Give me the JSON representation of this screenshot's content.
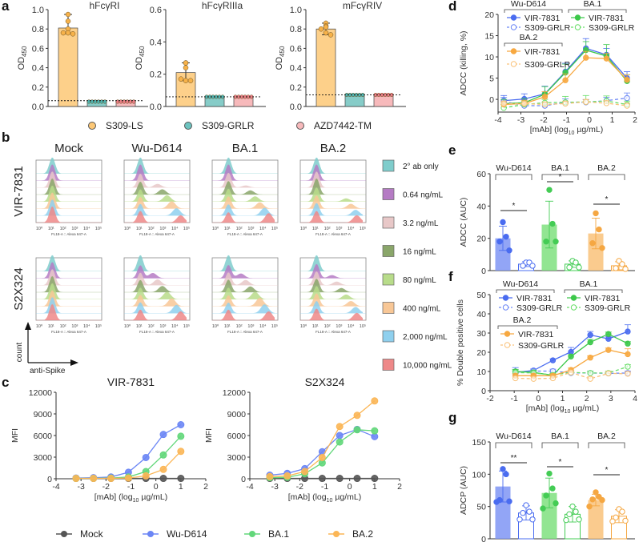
{
  "panel_labels": [
    "a",
    "b",
    "c",
    "d",
    "e",
    "f",
    "g"
  ],
  "colors": {
    "orange": "#f7b24a",
    "orange_fill": "#fdd08a",
    "teal": "#4fb3b0",
    "teal_fill": "#86ccc8",
    "pink": "#e87d84",
    "pink_fill": "#f7b9bb",
    "blue": "#4a6cf0",
    "blue_fill": "#7f95f5",
    "green": "#44cc55",
    "green_fill": "#7fe07f",
    "gold": "#f5a742",
    "gold_fill": "#f9c27a",
    "gray": "#555555"
  },
  "panel_b": {
    "columns": [
      "Mock",
      "Wu-D614",
      "BA.1",
      "BA.2"
    ],
    "rows": [
      "VIR-7831",
      "S2X324"
    ],
    "x_axis_label": "FL18-A :: Alexa 647-A",
    "x_ticks": [
      "10⁰",
      "10¹",
      "10²",
      "10³",
      "10⁴",
      "10⁵"
    ],
    "count_label": "count",
    "antispike_label": "anti-Spike",
    "legend": [
      {
        "label": "2° ab only",
        "color": "#7fcdcc"
      },
      {
        "label": "0.64 ng/mL",
        "color": "#b57bc4"
      },
      {
        "label": "3.2 ng/mL",
        "color": "#e8c8c8"
      },
      {
        "label": "16 ng/mL",
        "color": "#8aa66a"
      },
      {
        "label": "80 ng/mL",
        "color": "#b8dc8a"
      },
      {
        "label": "400 ng/mL",
        "color": "#f8c796"
      },
      {
        "label": "2,000 ng/mL",
        "color": "#8fd0ee"
      },
      {
        "label": "10,000 ng/mL",
        "color": "#ee8888"
      }
    ]
  },
  "chart_data": [
    {
      "id": "a1",
      "type": "bar",
      "title": "hFcγRI",
      "ylabel": "OD450",
      "ylim": [
        0,
        1.0
      ],
      "yticks": [
        "0.0",
        "0.2",
        "0.4",
        "0.6",
        "0.8",
        "1.0"
      ],
      "categories": [
        "S309-LS",
        "S309-GRLR",
        "AZD7442-TM"
      ],
      "values": [
        0.81,
        0.05,
        0.05
      ],
      "threshold": 0.06,
      "points": [
        [
          0.95,
          0.88,
          0.8,
          0.76,
          0.76,
          0.75
        ],
        [
          0.05,
          0.05,
          0.05,
          0.05,
          0.05,
          0.05
        ],
        [
          0.05,
          0.05,
          0.05,
          0.05,
          0.05,
          0.05
        ]
      ]
    },
    {
      "id": "a2",
      "type": "bar",
      "title": "hFcγRIIIa",
      "ylabel": "OD450",
      "ylim": [
        0,
        0.6
      ],
      "yticks": [
        "0.0",
        "0.2",
        "0.4",
        "0.6"
      ],
      "categories": [
        "S309-LS",
        "S309-GRLR",
        "AZD7442-TM"
      ],
      "values": [
        0.21,
        0.06,
        0.06
      ],
      "threshold": 0.06,
      "points": [
        [
          0.27,
          0.27,
          0.24,
          0.17,
          0.16,
          0.16
        ],
        [
          0.06,
          0.06,
          0.06,
          0.06,
          0.06,
          0.06
        ],
        [
          0.06,
          0.06,
          0.06,
          0.06,
          0.06,
          0.06
        ]
      ]
    },
    {
      "id": "a3",
      "type": "bar",
      "title": "mFcγRIV",
      "ylabel": "OD450",
      "ylim": [
        0,
        1.0
      ],
      "yticks": [
        "0.0",
        "0.2",
        "0.4",
        "0.6",
        "0.8",
        "1.0"
      ],
      "categories": [
        "S309-LS",
        "S309-GRLR",
        "AZD7442-TM"
      ],
      "values": [
        0.8,
        0.12,
        0.12
      ],
      "threshold": 0.12,
      "points": [
        [
          0.86,
          0.83,
          0.82,
          0.8,
          0.76,
          0.74
        ],
        [
          0.12,
          0.12,
          0.12,
          0.12,
          0.12,
          0.12
        ],
        [
          0.12,
          0.12,
          0.12,
          0.12,
          0.12,
          0.12
        ]
      ]
    },
    {
      "id": "c1",
      "type": "line",
      "title": "VIR-7831",
      "ylabel": "MFI",
      "xlabel": "[mAb] (log10 µg/mL)",
      "xlim": [
        -4,
        2
      ],
      "ylim": [
        0,
        12000
      ],
      "xticks": [
        "-4",
        "-3",
        "-2",
        "-1",
        "0",
        "1",
        "2"
      ],
      "yticks": [
        "0",
        "3000",
        "6000",
        "9000",
        "12000"
      ],
      "x": [
        -3.2,
        -2.5,
        -1.8,
        -1.1,
        -0.4,
        0.3,
        1.0
      ],
      "series": [
        {
          "name": "Mock",
          "values": [
            50,
            50,
            50,
            50,
            50,
            50,
            50
          ]
        },
        {
          "name": "Wu-D614",
          "values": [
            100,
            150,
            250,
            900,
            2950,
            6150,
            7500
          ]
        },
        {
          "name": "BA.1",
          "values": [
            50,
            60,
            100,
            250,
            1000,
            3300,
            5900
          ]
        },
        {
          "name": "BA.2",
          "values": [
            50,
            50,
            50,
            100,
            400,
            1300,
            3800
          ]
        }
      ]
    },
    {
      "id": "c2",
      "type": "line",
      "title": "S2X324",
      "ylabel": "MFI",
      "xlabel": "[mAb] (log10 µg/mL)",
      "xlim": [
        -4,
        2
      ],
      "ylim": [
        0,
        12000
      ],
      "xticks": [
        "-4",
        "-3",
        "-2",
        "-1",
        "0",
        "1",
        "2"
      ],
      "yticks": [
        "0",
        "3000",
        "6000",
        "9000",
        "12000"
      ],
      "x": [
        -3.2,
        -2.5,
        -1.8,
        -1.1,
        -0.4,
        0.3,
        1.0
      ],
      "series": [
        {
          "name": "Mock",
          "values": [
            50,
            50,
            50,
            50,
            50,
            50,
            50
          ]
        },
        {
          "name": "Wu-D614",
          "values": [
            500,
            750,
            1400,
            3750,
            6000,
            6850,
            5850
          ]
        },
        {
          "name": "BA.1",
          "values": [
            150,
            200,
            700,
            2200,
            5100,
            6800,
            6650
          ]
        },
        {
          "name": "BA.2",
          "values": [
            300,
            400,
            1000,
            2950,
            7250,
            8800,
            10800
          ]
        }
      ]
    },
    {
      "id": "d",
      "type": "line",
      "ylabel": "ADCC (killing, %)",
      "xlabel": "[mAb] (log10 µg/mL)",
      "xlim": [
        -4,
        2
      ],
      "ylim": [
        -3,
        20
      ],
      "xticks": [
        "-4",
        "-3",
        "-2",
        "-1",
        "0",
        "1",
        "2"
      ],
      "yticks": [
        "0",
        "5",
        "10",
        "15",
        "20"
      ],
      "x": [
        -3.75,
        -2.85,
        -1.95,
        -1.05,
        -0.15,
        0.75,
        1.65
      ],
      "series": [
        {
          "name": "Wu-D614 VIR-7831",
          "values": [
            -0.3,
            0.1,
            1.3,
            6.5,
            12.0,
            10.5,
            5.0
          ],
          "err": [
            1.2,
            1.2,
            1.8,
            2.0,
            2.3,
            1.5,
            1.5
          ]
        },
        {
          "name": "Wu-D614 S309-GRLR",
          "values": [
            -0.5,
            -1.5,
            -1.5,
            -0.7,
            -0.7,
            -0.3,
            0.3
          ],
          "err": [
            1.0,
            0.8,
            0.8,
            0.8,
            0.6,
            0.8,
            1.2
          ]
        },
        {
          "name": "BA.1 VIR-7831",
          "values": [
            -1.0,
            -0.8,
            1.2,
            6.3,
            11.6,
            10.2,
            4.3
          ],
          "err": [
            1.0,
            1.0,
            1.8,
            2.0,
            2.0,
            2.7,
            1.5
          ]
        },
        {
          "name": "BA.1 S309-GRLR",
          "values": [
            -2.0,
            -1.2,
            -0.8,
            -0.7,
            -0.6,
            -0.4,
            -1.2
          ],
          "err": [
            0.8,
            0.8,
            0.8,
            1.4,
            1.5,
            1.2,
            0.8
          ]
        },
        {
          "name": "BA.2 VIR-7831",
          "values": [
            -1.2,
            -1.0,
            0.6,
            4.5,
            9.8,
            9.6,
            4.6
          ],
          "err": [
            0.8,
            0.8,
            1.2,
            1.5,
            1.5,
            1.2,
            1.2
          ]
        },
        {
          "name": "BA.2 S309-GRLR",
          "values": [
            -1.0,
            -1.0,
            -1.2,
            -1.0,
            -0.6,
            -0.9,
            -1.5
          ],
          "err": [
            0.6,
            0.6,
            0.6,
            0.6,
            0.6,
            0.6,
            0.6
          ]
        }
      ]
    },
    {
      "id": "e",
      "type": "bar",
      "ylabel": "ADCC (AUC)",
      "ylim": [
        0,
        60
      ],
      "yticks": [
        "0",
        "20",
        "40",
        "60"
      ],
      "groups": [
        "Wu-D614",
        "BA.1",
        "BA.2"
      ],
      "significance": [
        "*",
        "*",
        "*"
      ],
      "bars": [
        {
          "group": "Wu-D614",
          "name": "VIR-7831",
          "value": 20,
          "err": 7.5,
          "points": [
            30,
            21,
            18,
            12.5
          ]
        },
        {
          "group": "Wu-D614",
          "name": "S309-GRLR",
          "value": 4,
          "err": 1.5,
          "points": [
            5,
            5,
            3,
            3
          ]
        },
        {
          "group": "BA.1",
          "name": "VIR-7831",
          "value": 28.5,
          "err": 14.5,
          "points": [
            50,
            29,
            18,
            18
          ]
        },
        {
          "group": "BA.1",
          "name": "S309-GRLR",
          "value": 4,
          "err": 2,
          "points": [
            6,
            5,
            2,
            2
          ]
        },
        {
          "group": "BA.2",
          "name": "VIR-7831",
          "value": 23,
          "err": 9.5,
          "points": [
            35.5,
            25.5,
            17,
            14
          ]
        },
        {
          "group": "BA.2",
          "name": "S309-GRLR",
          "value": 3,
          "err": 2.5,
          "points": [
            6,
            4,
            1.5,
            1
          ]
        }
      ]
    },
    {
      "id": "f",
      "type": "line",
      "ylabel": "% Double positive cells",
      "xlabel": "[mAb] (log10 µg/mL)",
      "xlim": [
        -2,
        4
      ],
      "ylim": [
        0,
        50
      ],
      "xticks": [
        "-2",
        "-1",
        "0",
        "1",
        "2",
        "3",
        "4"
      ],
      "yticks": [
        "0",
        "10",
        "20",
        "30",
        "40",
        "50"
      ],
      "x": [
        -0.95,
        -0.2,
        0.6,
        1.35,
        2.15,
        2.9,
        3.7
      ],
      "series": [
        {
          "name": "Wu-D614 VIR-7831",
          "values": [
            9.5,
            10.5,
            15.8,
            20.2,
            29.0,
            27.0,
            30.8
          ],
          "err": [
            2.5,
            0.8,
            0.8,
            2.3,
            1.8,
            1.2,
            3.5
          ]
        },
        {
          "name": "Wu-D614 S309-GRLR",
          "values": [
            9.0,
            10.2,
            10.2,
            9.2,
            9.2,
            9.0,
            9.2
          ],
          "err": [
            1,
            1,
            1,
            1,
            1,
            1,
            1
          ]
        },
        {
          "name": "BA.1 VIR-7831",
          "values": [
            10.0,
            9.5,
            8.0,
            17.8,
            25.2,
            29.5,
            24.5
          ],
          "err": [
            1,
            1,
            1,
            1,
            1.5,
            1,
            1
          ]
        },
        {
          "name": "BA.1 S309-GRLR",
          "values": [
            9.5,
            9.2,
            8.2,
            9.5,
            9.2,
            9.2,
            12.5
          ],
          "err": [
            1,
            1,
            1,
            1,
            1,
            1,
            1
          ]
        },
        {
          "name": "BA.2 VIR-7831",
          "values": [
            7.8,
            7.8,
            7.8,
            10.8,
            17.2,
            21.2,
            19.0
          ],
          "err": [
            1,
            1,
            1,
            1,
            1,
            1,
            2.8
          ]
        },
        {
          "name": "BA.2 S309-GRLR",
          "values": [
            6.5,
            6.2,
            6.5,
            9.5,
            6.2,
            9.0,
            8.8
          ],
          "err": [
            1,
            1,
            1,
            1,
            1,
            1,
            1
          ]
        }
      ]
    },
    {
      "id": "g",
      "type": "bar",
      "ylabel": "ADCP (AUC)",
      "ylim": [
        0,
        150
      ],
      "yticks": [
        "0",
        "50",
        "100",
        "150"
      ],
      "groups": [
        "Wu-D614",
        "BA.1",
        "BA.2"
      ],
      "significance": [
        "**",
        "*",
        "*"
      ],
      "bars": [
        {
          "group": "Wu-D614",
          "name": "VIR-7831",
          "value": 81,
          "err": 24,
          "points": [
            108,
            100,
            60,
            58,
            57
          ]
        },
        {
          "group": "Wu-D614",
          "name": "S309-GRLR",
          "value": 40,
          "err": 11,
          "points": [
            52,
            42,
            40,
            30,
            30
          ]
        },
        {
          "group": "BA.1",
          "name": "VIR-7831",
          "value": 71,
          "err": 23,
          "points": [
            101,
            78,
            67,
            55,
            47
          ]
        },
        {
          "group": "BA.1",
          "name": "S309-GRLR",
          "value": 38,
          "err": 12,
          "points": [
            50,
            42,
            38,
            30,
            29
          ]
        },
        {
          "group": "BA.2",
          "name": "VIR-7831",
          "value": 60,
          "err": 9,
          "points": [
            72,
            65,
            61,
            60,
            50
          ]
        },
        {
          "group": "BA.2",
          "name": "S309-GRLR",
          "value": 35,
          "err": 10,
          "points": [
            46,
            42,
            33,
            28,
            27
          ]
        }
      ]
    }
  ],
  "legend_a": [
    {
      "label": "S309-LS",
      "color": "#fdc876"
    },
    {
      "label": "S309-GRLR",
      "color": "#6cc3bf"
    },
    {
      "label": "AZD7442-TM",
      "color": "#f7b9bb"
    }
  ],
  "legend_c": [
    {
      "label": "Mock",
      "color": "#555555"
    },
    {
      "label": "Wu-D614",
      "color": "#6b86f5"
    },
    {
      "label": "BA.1",
      "color": "#62d77a"
    },
    {
      "label": "BA.2",
      "color": "#fbb656"
    }
  ],
  "legend_dfg": {
    "groups": [
      "Wu-D614",
      "BA.1",
      "BA.2"
    ],
    "antibodies": [
      "VIR-7831",
      "S309-GRLR"
    ]
  }
}
